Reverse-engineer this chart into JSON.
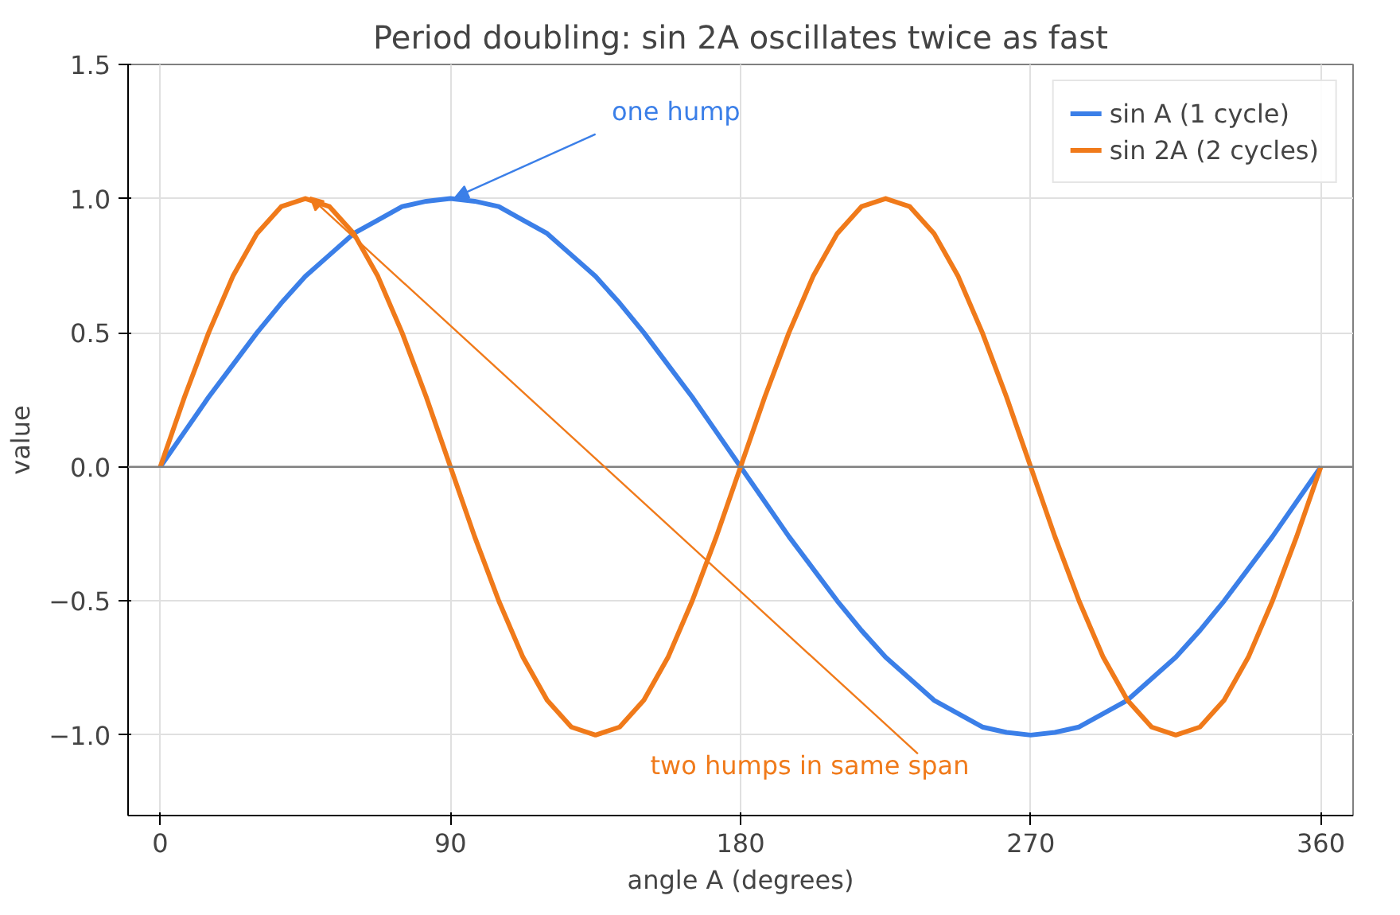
{
  "chart_data": {
    "type": "line",
    "title": "Period doubling: sin 2A oscillates twice as fast",
    "xlabel": "angle A (degrees)",
    "ylabel": "value",
    "x": [
      0,
      7.5,
      15,
      22.5,
      30,
      37.5,
      45,
      52.5,
      60,
      67.5,
      75,
      82.5,
      90,
      97.5,
      105,
      112.5,
      120,
      127.5,
      135,
      142.5,
      150,
      157.5,
      165,
      172.5,
      180,
      187.5,
      195,
      202.5,
      210,
      217.5,
      225,
      232.5,
      240,
      247.5,
      255,
      262.5,
      270,
      277.5,
      285,
      292.5,
      300,
      307.5,
      315,
      322.5,
      330,
      337.5,
      345,
      352.5,
      360
    ],
    "series": [
      {
        "name": "sin A (1 cycle)",
        "color": "#3b7fe8",
        "values": [
          0,
          0.13,
          0.26,
          0.38,
          0.5,
          0.61,
          0.71,
          0.79,
          0.87,
          0.92,
          0.97,
          0.99,
          1,
          0.99,
          0.97,
          0.92,
          0.87,
          0.79,
          0.71,
          0.61,
          0.5,
          0.38,
          0.26,
          0.13,
          0,
          -0.13,
          -0.26,
          -0.38,
          -0.5,
          -0.61,
          -0.71,
          -0.79,
          -0.87,
          -0.92,
          -0.97,
          -0.99,
          -1,
          -0.99,
          -0.97,
          -0.92,
          -0.87,
          -0.79,
          -0.71,
          -0.61,
          -0.5,
          -0.38,
          -0.26,
          -0.13,
          0
        ]
      },
      {
        "name": "sin 2A (2 cycles)",
        "color": "#f07a1a",
        "values": [
          0,
          0.26,
          0.5,
          0.71,
          0.87,
          0.97,
          1,
          0.97,
          0.87,
          0.71,
          0.5,
          0.26,
          0,
          -0.26,
          -0.5,
          -0.71,
          -0.87,
          -0.97,
          -1,
          -0.97,
          -0.87,
          -0.71,
          -0.5,
          -0.26,
          0,
          0.26,
          0.5,
          0.71,
          0.87,
          0.97,
          1,
          0.97,
          0.87,
          0.71,
          0.5,
          0.26,
          0,
          -0.26,
          -0.5,
          -0.71,
          -0.87,
          -0.97,
          -1,
          -0.97,
          -0.87,
          -0.71,
          -0.5,
          -0.26,
          0
        ]
      }
    ],
    "annotations": [
      {
        "text": "one hump",
        "x": 90,
        "y": 1
      },
      {
        "text": "two humps in same span",
        "x": 45,
        "y": 1
      }
    ],
    "ref_lines": [
      {
        "axis": "y",
        "value": 0,
        "color": "#808080"
      }
    ],
    "xlim": [
      -10,
      370
    ],
    "xticks": [
      0,
      90,
      180,
      270,
      360
    ],
    "ylim": [
      -1.3,
      1.5
    ],
    "yticks": [
      {
        "value": -1,
        "label": "−1.0"
      },
      {
        "value": -0.5,
        "label": "−0.5"
      },
      {
        "value": 0,
        "label": "0.0"
      },
      {
        "value": 0.5,
        "label": "0.5"
      },
      {
        "value": 1,
        "label": "1.0"
      },
      {
        "value": 1.5,
        "label": "1.5"
      }
    ],
    "grid": true,
    "legend": "top right",
    "line_style": "solid",
    "marker": "none"
  }
}
